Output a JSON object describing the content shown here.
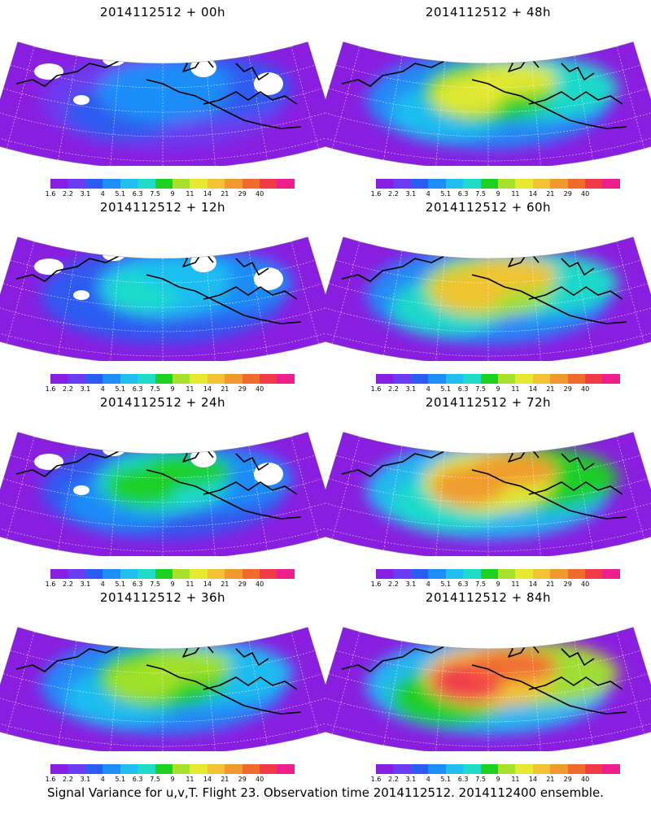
{
  "figure": {
    "caption": "Signal Variance for u,v,T. Flight 23. Observation time 2014112512. 2014112400 ensemble."
  },
  "colorbar": {
    "labels": [
      "1.6",
      "2.2",
      "3.1",
      "4",
      "5.1",
      "6.3",
      "7.5",
      "9",
      "11",
      "14",
      "21",
      "29",
      "40"
    ],
    "colors": [
      "#8a1ee0",
      "#6a3cf0",
      "#2a5cf0",
      "#1e8ef8",
      "#20bff0",
      "#1edcc8",
      "#20d020",
      "#a6e02a",
      "#e8e830",
      "#f2c234",
      "#f09a2e",
      "#f06a30",
      "#f03a4a",
      "#f01e8c"
    ]
  },
  "panels": [
    {
      "title": "2014112512 + 00h",
      "lead": "00h",
      "intensity": 0.25,
      "missing_patches": true
    },
    {
      "title": "2014112512 + 48h",
      "lead": "48h",
      "intensity": 0.62,
      "missing_patches": false
    },
    {
      "title": "2014112512 + 12h",
      "lead": "12h",
      "intensity": 0.35,
      "missing_patches": true
    },
    {
      "title": "2014112512 + 60h",
      "lead": "60h",
      "intensity": 0.7,
      "missing_patches": false
    },
    {
      "title": "2014112512 + 24h",
      "lead": "24h",
      "intensity": 0.45,
      "missing_patches": true
    },
    {
      "title": "2014112512 + 72h",
      "lead": "72h",
      "intensity": 0.8,
      "missing_patches": false
    },
    {
      "title": "2014112512 + 36h",
      "lead": "36h",
      "intensity": 0.55,
      "missing_patches": false
    },
    {
      "title": "2014112512 + 84h",
      "lead": "84h",
      "intensity": 0.9,
      "missing_patches": false
    }
  ]
}
